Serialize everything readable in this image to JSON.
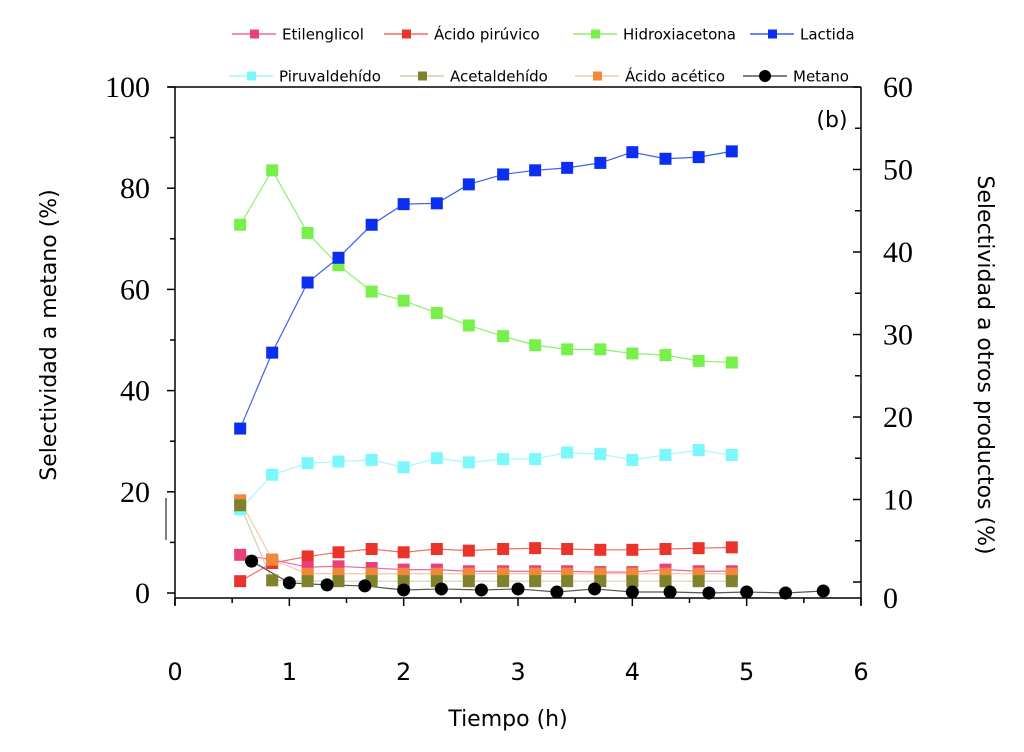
{
  "chart_data": {
    "type": "line",
    "title": "",
    "panel_label": "(b)",
    "xlabel": "Tiempo (h)",
    "ylabel_left": "Selectividad a metano (%)",
    "ylabel_right": "Selectividad a otros productos (%)",
    "xlim": [
      0,
      6
    ],
    "ylim_left": [
      0,
      100
    ],
    "ylim_right": [
      0,
      60
    ],
    "xticks": [
      "0",
      "1",
      "2",
      "3",
      "4",
      "5",
      "6"
    ],
    "yticks_left": [
      "0",
      "20",
      "40",
      "60",
      "80",
      "100"
    ],
    "yticks_right": [
      "0",
      "10",
      "20",
      "30",
      "40",
      "50",
      "60"
    ],
    "grid": false,
    "legend_placement": "top",
    "x": [
      0.57,
      0.85,
      1.16,
      1.43,
      1.72,
      2.0,
      2.29,
      2.57,
      2.87,
      3.15,
      3.43,
      3.72,
      4.0,
      4.29,
      4.58,
      4.87
    ],
    "series": [
      {
        "name": "Etilenglicol",
        "axis": "right",
        "marker": "square",
        "color": "#e8407e",
        "line_color": "#f06aa0",
        "values": [
          3.3,
          2.7,
          1.8,
          1.9,
          1.7,
          1.5,
          1.5,
          1.3,
          1.3,
          1.3,
          1.3,
          1.2,
          1.2,
          1.5,
          1.3,
          1.3
        ]
      },
      {
        "name": "Ácido pirúvico",
        "axis": "right",
        "marker": "square",
        "color": "#e8342a",
        "line_color": "#f26b62",
        "values": [
          0.1,
          2.3,
          3.1,
          3.6,
          4.0,
          3.6,
          4.0,
          3.8,
          4.0,
          4.1,
          4.0,
          3.9,
          3.9,
          4.0,
          4.1,
          4.2
        ]
      },
      {
        "name": "Hidroxiacetona",
        "axis": "right",
        "marker": "square",
        "color": "#77f04a",
        "line_color": "#8ef06c",
        "values": [
          43.3,
          49.9,
          42.3,
          38.4,
          35.2,
          34.1,
          32.6,
          31.1,
          29.8,
          28.7,
          28.2,
          28.2,
          27.7,
          27.5,
          26.8,
          26.6
        ]
      },
      {
        "name": "Lactida",
        "axis": "right",
        "marker": "square",
        "color": "#0a2ff0",
        "line_color": "#3f5ef2",
        "values": [
          18.6,
          27.8,
          36.3,
          39.3,
          43.3,
          45.8,
          45.9,
          48.2,
          49.4,
          49.9,
          50.2,
          50.8,
          52.1,
          51.3,
          51.5,
          52.2
        ]
      },
      {
        "name": "Piruvaldehído",
        "axis": "right",
        "marker": "square",
        "color": "#7af8fb",
        "line_color": "#a8f8fa",
        "values": [
          8.8,
          13.0,
          14.4,
          14.6,
          14.8,
          13.9,
          15.0,
          14.5,
          14.9,
          14.9,
          15.7,
          15.5,
          14.8,
          15.4,
          16.0,
          15.4
        ]
      },
      {
        "name": "Acetaldehído",
        "axis": "right",
        "marker": "square",
        "color": "#7f822a",
        "line_color": "#cfd0b6",
        "values": [
          9.3,
          0.2,
          0.1,
          0.1,
          0.1,
          0.1,
          0.1,
          0.1,
          0.1,
          0.1,
          0.1,
          0.1,
          0.1,
          0.1,
          0.1,
          0.1
        ]
      },
      {
        "name": "Ácido acético",
        "axis": "right",
        "marker": "square",
        "color": "#f08a3a",
        "line_color": "#f5c9a8",
        "values": [
          9.9,
          2.7,
          1.0,
          1.0,
          1.0,
          1.0,
          1.0,
          1.0,
          1.0,
          1.0,
          1.0,
          1.0,
          1.0,
          1.0,
          1.0,
          1.0
        ]
      },
      {
        "name": "Metano",
        "axis": "left",
        "marker": "circle",
        "color": "#000000",
        "line_color": "#555555",
        "x": [
          0.67,
          1.0,
          1.33,
          1.66,
          2.0,
          2.33,
          2.68,
          3.0,
          3.34,
          3.67,
          4.0,
          4.33,
          4.67,
          5.0,
          5.34,
          5.67
        ],
        "values": [
          6.3,
          2.0,
          1.6,
          1.4,
          0.6,
          0.8,
          0.6,
          0.8,
          0.2,
          0.8,
          0.2,
          0.2,
          0.0,
          0.2,
          0.0,
          0.4
        ]
      }
    ]
  }
}
